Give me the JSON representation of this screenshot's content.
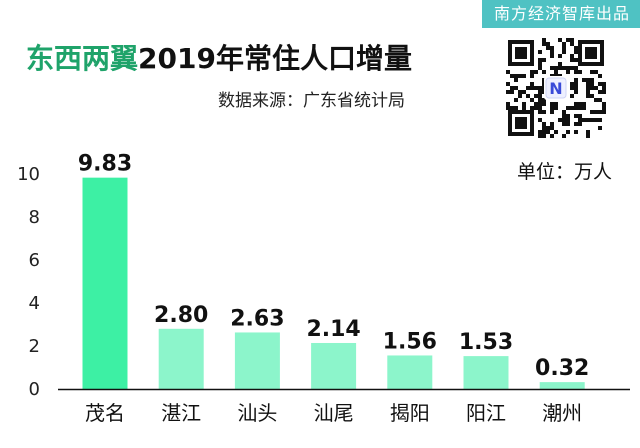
{
  "header": {
    "brand": "南方经济智库出品",
    "title_highlight": "东西两翼",
    "title_rest": "2019年常住人口增量",
    "source": "数据来源：广东省统计局",
    "unit": "单位：万人",
    "qr_badge": "N"
  },
  "colors": {
    "bar_first": "#3df0a4",
    "bar_rest": "#8cf5cb",
    "title_accent": "#1fa36a",
    "brand_bg": "#4fc2c3",
    "qr_badge": "#3a4bd8"
  },
  "chart_data": {
    "type": "bar",
    "categories": [
      "茂名",
      "湛江",
      "汕头",
      "汕尾",
      "揭阳",
      "阳江",
      "潮州"
    ],
    "values": [
      9.83,
      2.8,
      2.63,
      2.14,
      1.56,
      1.53,
      0.32
    ],
    "value_labels": [
      "9.83",
      "2.80",
      "2.63",
      "2.14",
      "1.56",
      "1.53",
      "0.32"
    ],
    "title": "东西两翼2019年常住人口增量",
    "xlabel": "",
    "ylabel": "",
    "ylim": [
      0,
      10
    ],
    "yticks": [
      0,
      2,
      4,
      6,
      8,
      10
    ],
    "grid": false
  }
}
